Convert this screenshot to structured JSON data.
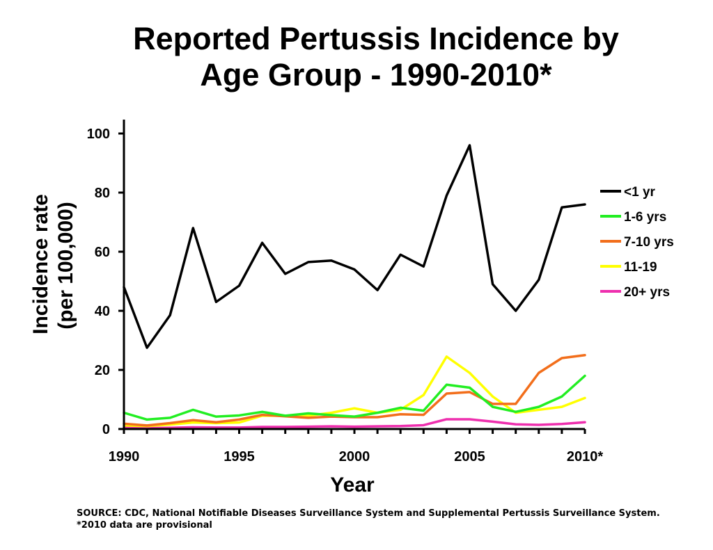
{
  "chart_data": {
    "type": "line",
    "title_line1": "Reported Pertussis Incidence by",
    "title_line2": "Age Group - 1990-2010*",
    "xlabel": "Year",
    "ylabel_line1": "Incidence rate",
    "ylabel_line2": "(per 100,000)",
    "x": [
      1990,
      1991,
      1992,
      1993,
      1994,
      1995,
      1996,
      1997,
      1998,
      1999,
      2000,
      2001,
      2002,
      2003,
      2004,
      2005,
      2006,
      2007,
      2008,
      2009,
      2010
    ],
    "x_ticks": [
      1990,
      1995,
      2000,
      2005,
      2010
    ],
    "x_tick_labels": [
      "1990",
      "1995",
      "2000",
      "2005",
      "2010*"
    ],
    "ylim": [
      0,
      100
    ],
    "y_ticks": [
      0,
      20,
      40,
      60,
      80,
      100
    ],
    "y_tick_labels": [
      "0",
      "20",
      "40",
      "60",
      "80",
      "100"
    ],
    "legend_position": "right",
    "series": [
      {
        "name": "<1 yr",
        "color": "#000000",
        "values": [
          48,
          27.5,
          38.5,
          68,
          43,
          48.5,
          63,
          52.5,
          56.5,
          57,
          54,
          47,
          59,
          55,
          79,
          96,
          49,
          40,
          50.5,
          75,
          76
        ]
      },
      {
        "name": "1-6 yrs",
        "color": "#22ee22",
        "values": [
          5.5,
          3.2,
          3.8,
          6.5,
          4.2,
          4.6,
          5.8,
          4.5,
          5.3,
          4.7,
          4.2,
          5.5,
          7.2,
          6.2,
          15,
          14,
          7.5,
          5.8,
          7.5,
          11,
          18
        ]
      },
      {
        "name": "7-10 yrs",
        "color": "#f26e1b",
        "values": [
          1.8,
          1.2,
          2,
          3,
          2.3,
          3.2,
          4.8,
          4.3,
          3.8,
          4.2,
          4,
          4,
          5,
          4.8,
          12,
          12.5,
          8.5,
          8.5,
          19,
          24,
          25
        ]
      },
      {
        "name": "11-19",
        "color": "#ffff00",
        "values": [
          1.2,
          1,
          1.5,
          2.2,
          2,
          2.2,
          4.5,
          4.5,
          4.5,
          5.5,
          7,
          5.5,
          6.5,
          11.5,
          24.5,
          19,
          11,
          5.5,
          6.5,
          7.5,
          10.5
        ]
      },
      {
        "name": "20+ yrs",
        "color": "#ee2fae",
        "values": [
          0.5,
          0.3,
          0.4,
          0.6,
          0.5,
          0.5,
          0.7,
          0.7,
          0.8,
          0.9,
          0.8,
          0.9,
          1,
          1.3,
          3.3,
          3.3,
          2.5,
          1.6,
          1.4,
          1.7,
          2.3
        ]
      }
    ]
  },
  "source_text": "SOURCE: CDC, National Notifiable Diseases Surveillance System and Supplemental Pertussis Surveillance System.  *2010 data are provisional"
}
